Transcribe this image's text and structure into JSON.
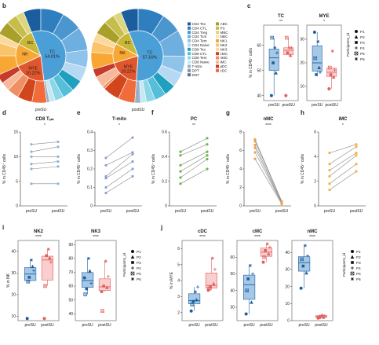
{
  "panel_letters": {
    "b": "b",
    "c": "c",
    "d": "d",
    "e": "e",
    "f": "f",
    "g": "g",
    "h": "h",
    "i": "i",
    "j": "j"
  },
  "chart_data": [
    {
      "id": "b",
      "type": "pie",
      "pies": [
        {
          "name": "preSU",
          "inner": [
            {
              "label": "TC",
              "value": 54.01,
              "color": "#4a9fd6",
              "show": "54.01%"
            },
            {
              "label": "MYE",
              "value": 20.22,
              "color": "#e2562e",
              "show": "20.22%"
            },
            {
              "label": "NK",
              "value": 14.5,
              "color": "#f7a734",
              "show": ""
            },
            {
              "label": "BC",
              "value": 11.27,
              "color": "#c9b837",
              "show": ""
            }
          ],
          "outer": [
            {
              "label": "CD4 Tex",
              "value": 6,
              "color": "#1a5ea0"
            },
            {
              "label": "CD4 CTL",
              "value": 8,
              "color": "#2f7fbf"
            },
            {
              "label": "CD4 Treg",
              "value": 7,
              "color": "#4c96d0"
            },
            {
              "label": "CD4 Tcm",
              "value": 8,
              "color": "#6fafe0"
            },
            {
              "label": "CD4 Tem",
              "value": 6,
              "color": "#8fc4ea"
            },
            {
              "label": "CD4 Naive",
              "value": 5,
              "color": "#b5d9f2"
            },
            {
              "label": "CD8 Tex",
              "value": 4,
              "color": "#20a0c0"
            },
            {
              "label": "CD8 CTL",
              "value": 4,
              "color": "#55bfd9"
            },
            {
              "label": "CD8 Tem",
              "value": 3,
              "color": "#8dd6e8"
            },
            {
              "label": "CD8 Naive",
              "value": 2,
              "color": "#c4e9f3"
            },
            {
              "label": "T-mito",
              "value": 1,
              "color": "#9ab0c8"
            },
            {
              "label": "cDC",
              "value": 5,
              "color": "#f26b3a"
            },
            {
              "label": "cMC",
              "value": 5,
              "color": "#d2461d"
            },
            {
              "label": "nMC",
              "value": 4,
              "color": "#f08f63"
            },
            {
              "label": "iMC",
              "value": 3,
              "color": "#f7b899"
            },
            {
              "label": "pDC",
              "value": 3,
              "color": "#c63b2a"
            },
            {
              "label": "NK1",
              "value": 7,
              "color": "#f7a734"
            },
            {
              "label": "NK2",
              "value": 5,
              "color": "#fac46a"
            },
            {
              "label": "NK3",
              "value": 3,
              "color": "#fcd99a"
            },
            {
              "label": "ABC",
              "value": 5,
              "color": "#a9a02c"
            },
            {
              "label": "PC",
              "value": 4,
              "color": "#c6bd4b"
            },
            {
              "label": "MBC",
              "value": 3,
              "color": "#dcd67e"
            }
          ]
        },
        {
          "name": "postSU",
          "inner": [
            {
              "label": "TC",
              "value": 57.16,
              "color": "#4a9fd6",
              "show": "57.16%"
            },
            {
              "label": "MYE",
              "value": 19.22,
              "color": "#e2562e",
              "show": "19.22%"
            },
            {
              "label": "NK",
              "value": 12.6,
              "color": "#f7a734",
              "show": ""
            },
            {
              "label": "BC",
              "value": 11.02,
              "color": "#c9b837",
              "show": ""
            }
          ],
          "outer": [
            {
              "label": "CD4 Tex",
              "value": 6,
              "color": "#1a5ea0"
            },
            {
              "label": "CD4 CTL",
              "value": 9,
              "color": "#2f7fbf"
            },
            {
              "label": "CD4 Treg",
              "value": 7,
              "color": "#4c96d0"
            },
            {
              "label": "CD4 Tcm",
              "value": 9,
              "color": "#6fafe0"
            },
            {
              "label": "CD4 Tem",
              "value": 6,
              "color": "#8fc4ea"
            },
            {
              "label": "CD4 Naive",
              "value": 5,
              "color": "#b5d9f2"
            },
            {
              "label": "CD8 Tex",
              "value": 4,
              "color": "#20a0c0"
            },
            {
              "label": "CD8 CTL",
              "value": 4,
              "color": "#55bfd9"
            },
            {
              "label": "CD8 Tem",
              "value": 3,
              "color": "#8dd6e8"
            },
            {
              "label": "CD8 Naive",
              "value": 2,
              "color": "#c4e9f3"
            },
            {
              "label": "T-mito",
              "value": 2,
              "color": "#9ab0c8"
            },
            {
              "label": "cDC",
              "value": 6,
              "color": "#f26b3a"
            },
            {
              "label": "cMC",
              "value": 6,
              "color": "#d2461d"
            },
            {
              "label": "nMC",
              "value": 1,
              "color": "#f08f63"
            },
            {
              "label": "iMC",
              "value": 4,
              "color": "#f7b899"
            },
            {
              "label": "pDC",
              "value": 3,
              "color": "#c63b2a"
            },
            {
              "label": "NK1",
              "value": 6,
              "color": "#f7a734"
            },
            {
              "label": "NK2",
              "value": 4,
              "color": "#fac46a"
            },
            {
              "label": "NK3",
              "value": 3,
              "color": "#fcd99a"
            },
            {
              "label": "ABC",
              "value": 5,
              "color": "#a9a02c"
            },
            {
              "label": "PC",
              "value": 4,
              "color": "#c6bd4b"
            },
            {
              "label": "MBC",
              "value": 3,
              "color": "#dcd67e"
            }
          ]
        }
      ],
      "legend_col1": [
        {
          "label": "CD4 Tex",
          "color": "#1a5ea0"
        },
        {
          "label": "CD4 CTL",
          "color": "#2f7fbf"
        },
        {
          "label": "CD4 Treg",
          "color": "#4c96d0"
        },
        {
          "label": "CD4 Tcm",
          "color": "#6fafe0"
        },
        {
          "label": "CD4 Tem",
          "color": "#8fc4ea"
        },
        {
          "label": "CD4 Naive",
          "color": "#b5d9f2"
        },
        {
          "label": "CD8 Tex",
          "color": "#20a0c0"
        },
        {
          "label": "CD8 CTL",
          "color": "#55bfd9"
        },
        {
          "label": "CD8 Tem",
          "color": "#8dd6e8"
        },
        {
          "label": "CD8 Naive",
          "color": "#c4e9f3"
        },
        {
          "label": "T-mito",
          "color": "#9ab0c8"
        },
        {
          "label": "DPT",
          "color": "#7f93ad"
        },
        {
          "label": "DNT",
          "color": "#5f7390"
        }
      ],
      "legend_col2": [
        {
          "label": "ABC",
          "color": "#a9a02c"
        },
        {
          "label": "PC",
          "color": "#c6bd4b"
        },
        {
          "label": "MBC",
          "color": "#dcd67e"
        },
        {
          "label": "NBC",
          "color": "#eee9b5"
        },
        {
          "label": "NK1",
          "color": "#f7a734"
        },
        {
          "label": "NK2",
          "color": "#fac46a"
        },
        {
          "label": "NK3",
          "color": "#fcd99a"
        },
        {
          "label": "cMC",
          "color": "#d2461d"
        },
        {
          "label": "nMC",
          "color": "#f08f63"
        },
        {
          "label": "iMC",
          "color": "#f7b899"
        },
        {
          "label": "pDC",
          "color": "#c63b2a"
        },
        {
          "label": "cDC",
          "color": "#f26b3a"
        }
      ]
    },
    {
      "id": "c",
      "type": "box",
      "ylabel": "% in CD45⁺ cells",
      "participants_title": "Participants_id",
      "participants": [
        "P1",
        "P2",
        "P3",
        "P4",
        "P5",
        "P6"
      ],
      "panels": [
        {
          "title": "TC",
          "sig": "**",
          "ylim": [
            38,
            68
          ],
          "ticks": [
            40,
            50,
            60
          ],
          "groups": [
            {
              "name": "preSU",
              "values": [
                40,
                49,
                53,
                57,
                63,
                59
              ]
            },
            {
              "name": "postSU",
              "values": [
                40,
                56,
                57,
                59,
                63,
                59
              ]
            }
          ]
        },
        {
          "title": "MYE",
          "sig": "*",
          "ylim": [
            4,
            36
          ],
          "ticks": [
            10,
            20,
            30
          ],
          "groups": [
            {
              "name": "preSU",
              "values": [
                33,
                18,
                15,
                16,
                22,
                29
              ]
            },
            {
              "name": "postSU",
              "values": [
                9,
                14,
                15,
                17,
                18,
                25
              ]
            }
          ]
        }
      ]
    },
    {
      "id": "d",
      "type": "paired",
      "title": "CD8 Tₑₘ",
      "sig": "*",
      "ylim": [
        0,
        15
      ],
      "ticks": [
        0,
        5,
        10,
        15
      ],
      "color": "#8bb5d8",
      "ylabel": "% in CD45⁺ cells",
      "pre": [
        4.5,
        7.5,
        8.5,
        10,
        11,
        12.5
      ],
      "post": [
        4.5,
        8,
        9,
        10,
        12,
        13
      ]
    },
    {
      "id": "e",
      "type": "paired",
      "title": "T-mito",
      "sig": "*",
      "ylim": [
        0,
        0.4
      ],
      "ticks": [
        0,
        0.1,
        0.2,
        0.3,
        0.4
      ],
      "color": "#8b9fd8",
      "ylabel": "% in CD45⁺ cells",
      "pre": [
        0.07,
        0.1,
        0.15,
        0.16,
        0.22,
        0.26
      ],
      "post": [
        0.16,
        0.2,
        0.24,
        0.28,
        0.29,
        0.37
      ]
    },
    {
      "id": "f",
      "type": "paired",
      "title": "PC",
      "sig": "**",
      "ylim": [
        0,
        0.6
      ],
      "ticks": [
        0,
        0.2,
        0.4,
        0.6
      ],
      "color": "#6ab64a",
      "ylabel": "% in CD45⁺ cells",
      "pre": [
        0.18,
        0.23,
        0.28,
        0.33,
        0.41,
        0.44
      ],
      "post": [
        0.3,
        0.38,
        0.41,
        0.44,
        0.5,
        0.55
      ]
    },
    {
      "id": "g",
      "type": "paired",
      "title": "nMC",
      "sig": "****",
      "ylim": [
        0,
        8
      ],
      "ticks": [
        0,
        2,
        4,
        6,
        8
      ],
      "color": "#f0a050",
      "ylabel": "% in CD45⁺ cells",
      "pre": [
        5.1,
        5.8,
        6.3,
        6.6,
        7.0,
        7.2
      ],
      "post": [
        0.2,
        0.3,
        0.3,
        0.4,
        0.5,
        0.5
      ]
    },
    {
      "id": "h",
      "type": "paired",
      "title": "iMC",
      "sig": "*",
      "ylim": [
        0,
        6
      ],
      "ticks": [
        0,
        2,
        4,
        6
      ],
      "color": "#f4b33d",
      "ylabel": "% in CD45⁺ cells",
      "pre": [
        1.3,
        1.8,
        2.4,
        2.9,
        3.4,
        4.3
      ],
      "post": [
        2.8,
        3.4,
        4.1,
        4.3,
        4.8,
        5.0
      ]
    },
    {
      "id": "i",
      "type": "box",
      "ylabel": "% in NK",
      "participants_title": "Participants_id",
      "participants": [
        "P1",
        "P2",
        "P3",
        "P4",
        "P5",
        "P6"
      ],
      "panels": [
        {
          "title": "NK2",
          "sig": "****",
          "ylim": [
            8,
            45
          ],
          "ticks": [
            10,
            20,
            30,
            40
          ],
          "groups": [
            {
              "name": "preSU",
              "values": [
                9,
                33,
                28,
                31,
                26,
                36
              ]
            },
            {
              "name": "postSU",
              "values": [
                9,
                37,
                38,
                35,
                24,
                41
              ]
            }
          ]
        },
        {
          "title": "NK3",
          "sig": "****",
          "ylim": [
            35,
            93
          ],
          "ticks": [
            40,
            50,
            60,
            70,
            80,
            90
          ],
          "groups": [
            {
              "name": "preSU",
              "values": [
                66,
                71,
                58,
                62,
                54,
                80
              ]
            },
            {
              "name": "postSU",
              "values": [
                56,
                59,
                60,
                67,
                42,
                78
              ]
            }
          ]
        }
      ]
    },
    {
      "id": "j",
      "type": "box",
      "ylabel": "% in MYE",
      "participants_title": "Participants_id",
      "participants": [
        "P1",
        "P2",
        "P3",
        "P4",
        "P5",
        "P6"
      ],
      "panels": [
        {
          "title": "cDC",
          "sig": "****",
          "ylim": [
            1.5,
            6.5
          ],
          "ticks": [
            2,
            3,
            4,
            5,
            6
          ],
          "groups": [
            {
              "name": "preSU",
              "values": [
                2.1,
                2.8,
                2.7,
                3.6,
                2.5,
                3.3
              ]
            },
            {
              "name": "postSU",
              "values": [
                3.4,
                3.8,
                3.6,
                4.7,
                3.5,
                5.4
              ]
            }
          ]
        },
        {
          "title": "cMC",
          "sig": "****",
          "ylim": [
            22,
            70
          ],
          "ticks": [
            30,
            40,
            50,
            60
          ],
          "groups": [
            {
              "name": "preSU",
              "values": [
                26,
                33,
                47,
                50,
                40,
                55
              ]
            },
            {
              "name": "postSU",
              "values": [
                57,
                62,
                64,
                66,
                60,
                68
              ]
            }
          ]
        },
        {
          "title": "nMC",
          "sig": "****",
          "ylim": [
            0,
            47
          ],
          "ticks": [
            0,
            10,
            20,
            30,
            40
          ],
          "groups": [
            {
              "name": "preSU",
              "values": [
                19,
                28,
                32,
                38,
                36,
                44
              ]
            },
            {
              "name": "postSU",
              "values": [
                1.5,
                2,
                2.5,
                3,
                2,
                3.2
              ]
            }
          ]
        }
      ]
    }
  ]
}
